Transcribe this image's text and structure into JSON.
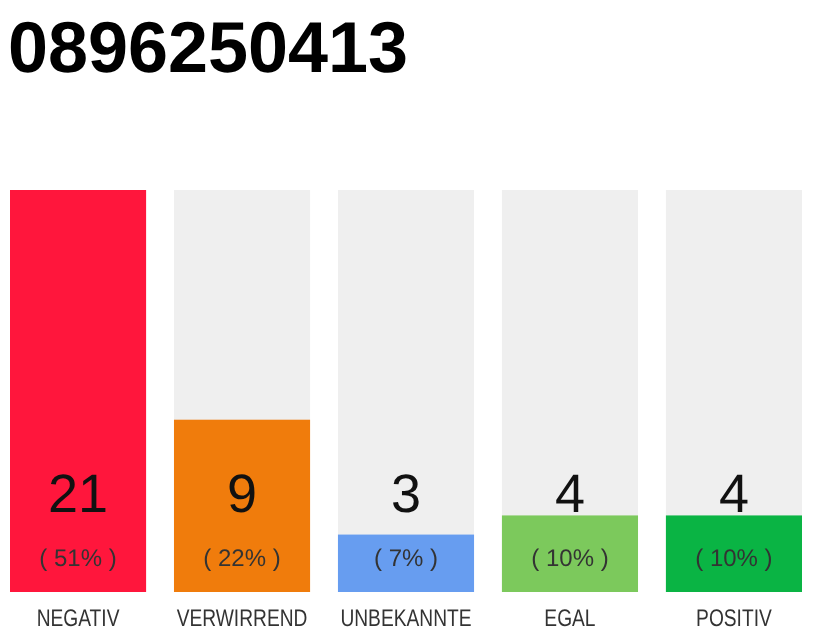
{
  "chart_data": {
    "type": "bar",
    "title": "0896250413",
    "categories": [
      "NEGATIV",
      "VERWIRREND",
      "UNBEKANNTE",
      "EGAL",
      "POSITIV"
    ],
    "values": [
      21,
      9,
      3,
      4,
      4
    ],
    "colors": [
      "#ff163c",
      "#f07c0c",
      "#679df0",
      "#7cc95c",
      "#0ab444"
    ],
    "data_labels": true,
    "annotations": [
      "( 51% )",
      "( 22% )",
      "( 7% )",
      "( 10% )",
      "( 10% )"
    ]
  }
}
